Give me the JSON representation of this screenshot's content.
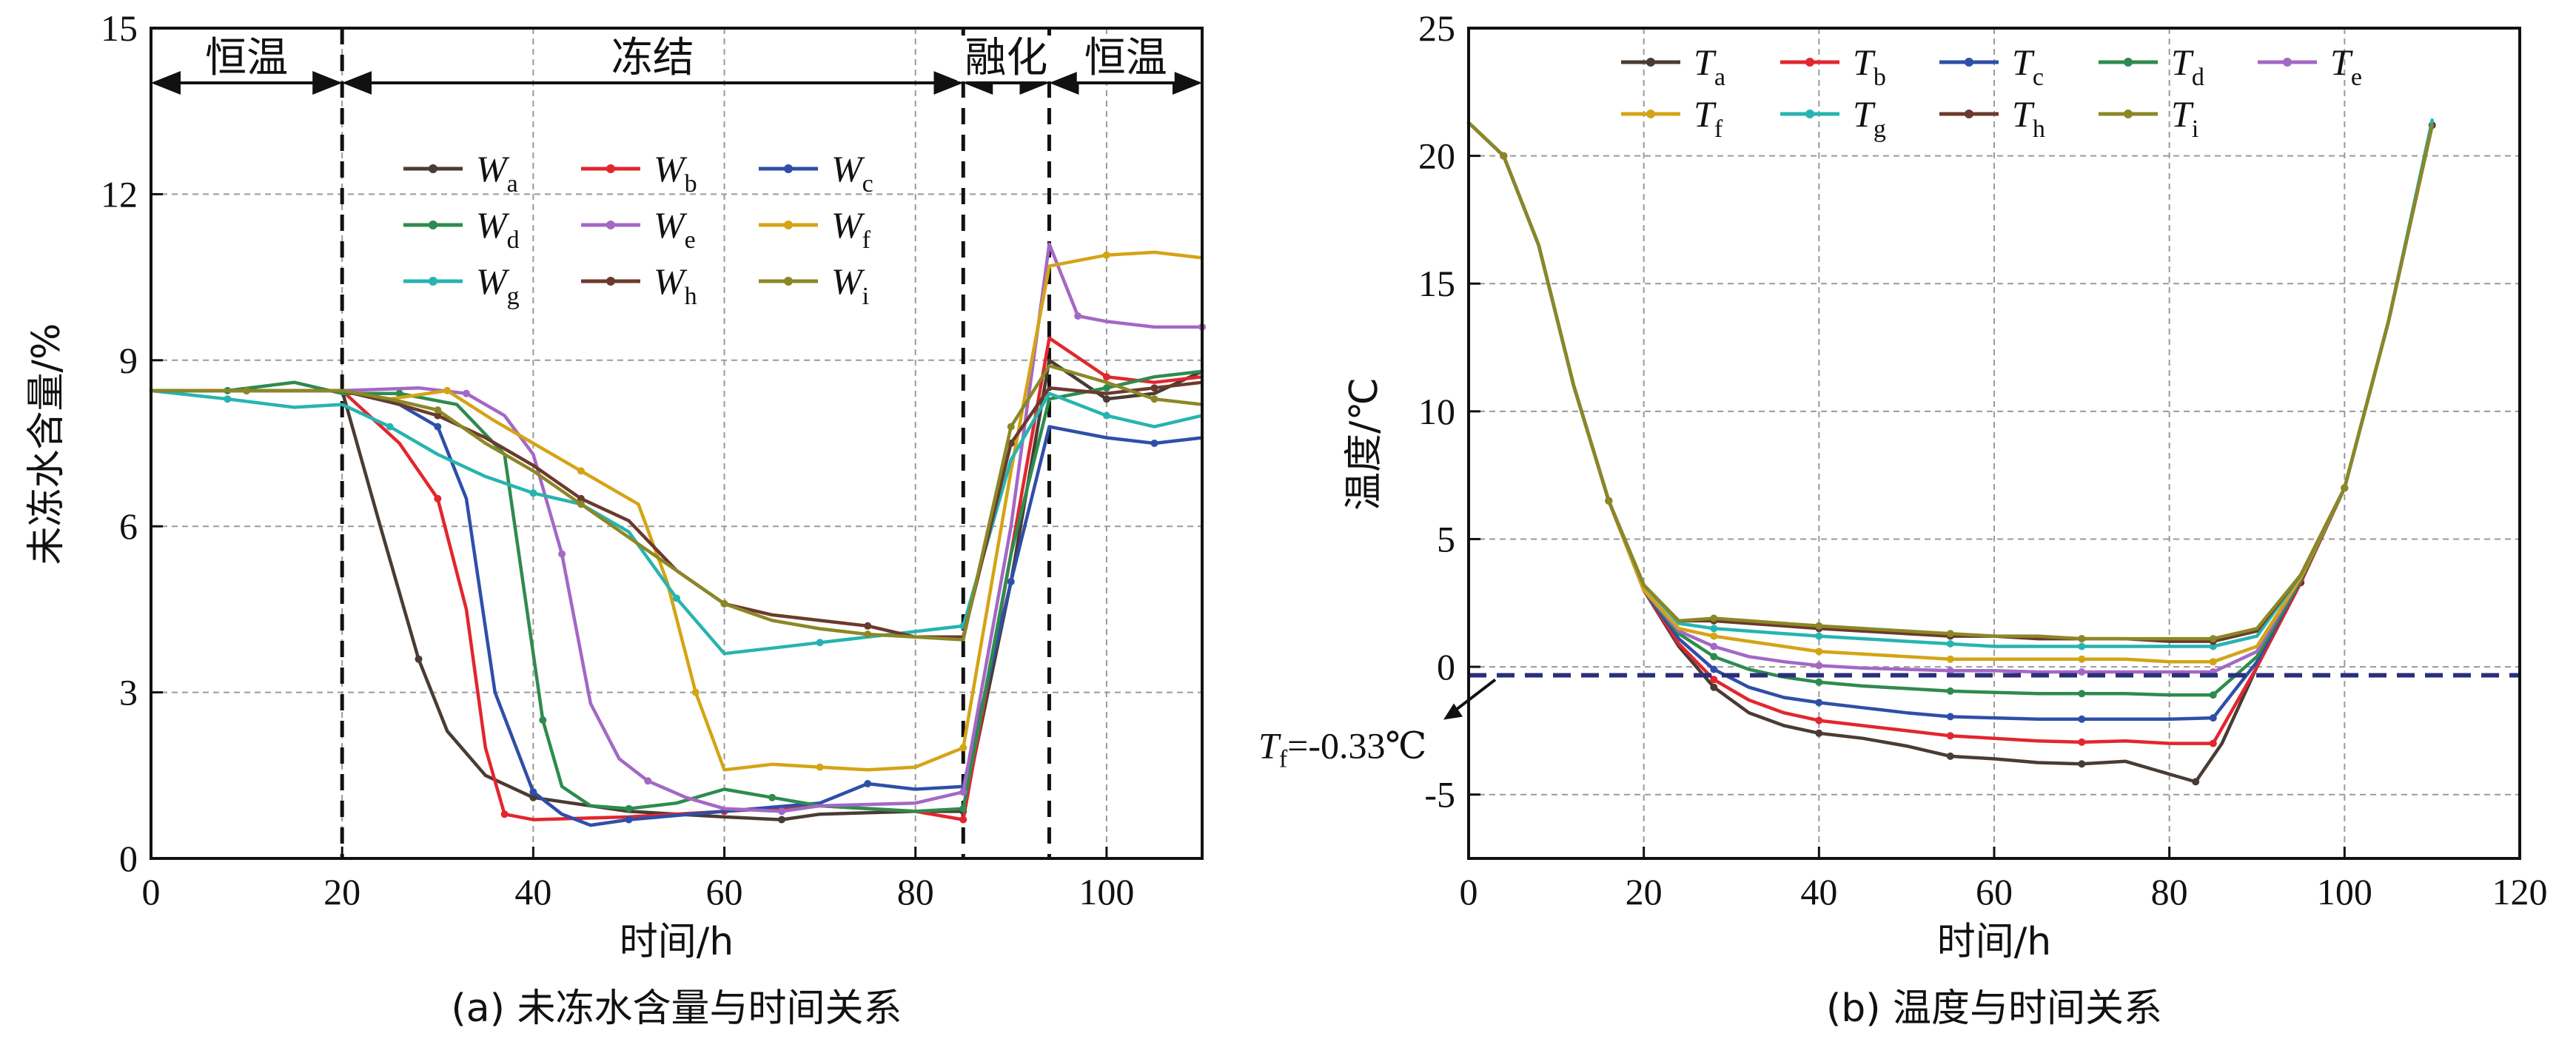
{
  "charts": [
    {
      "id": "a",
      "caption": "(a) 未冻水含量与时间关系",
      "xlabel": "时间/h",
      "ylabel": "未冻水含量/%",
      "xlim": [
        0,
        110
      ],
      "ylim": [
        0,
        15
      ],
      "xticks": [
        "0",
        "20",
        "40",
        "60",
        "80",
        "100"
      ],
      "yticks": [
        "0",
        "3",
        "6",
        "9",
        "12",
        "15"
      ],
      "phases": [
        {
          "label": "恒温",
          "from": 0,
          "to": 20
        },
        {
          "label": "冻结",
          "from": 20,
          "to": 85
        },
        {
          "label": "融化",
          "from": 85,
          "to": 94
        },
        {
          "label": "恒温",
          "from": 94,
          "to": 110
        }
      ],
      "dashed_lines_x": [
        20,
        85,
        94
      ]
    },
    {
      "id": "b",
      "caption": "(b) 温度与时间关系",
      "xlabel": "时间/h",
      "ylabel": "温度/℃",
      "xlim": [
        0,
        120
      ],
      "ylim": [
        -7.5,
        25
      ],
      "xticks": [
        "0",
        "20",
        "40",
        "60",
        "80",
        "100",
        "120"
      ],
      "yticks": [
        "-5",
        "0",
        "5",
        "10",
        "15",
        "20",
        "25"
      ],
      "freezing_line": {
        "y": -0.33,
        "label_main": "T",
        "label_sub": "f",
        "label_value": "=-0.33℃"
      }
    }
  ],
  "chart_data": [
    {
      "type": "line",
      "xlabel": "时间/h",
      "ylabel": "未冻水含量/%",
      "xlim": [
        0,
        110
      ],
      "ylim": [
        0,
        15
      ],
      "grid": true,
      "legend_position": "upper-middle",
      "series": [
        {
          "name": "Wa",
          "main": "W",
          "sub": "a",
          "color": "#4a3b33",
          "x": [
            0,
            10,
            20,
            24,
            28,
            31,
            35,
            40,
            50,
            60,
            66,
            70,
            80,
            85,
            90,
            94,
            100,
            105,
            110
          ],
          "y": [
            8.45,
            8.45,
            8.45,
            6.0,
            3.6,
            2.3,
            1.5,
            1.1,
            0.85,
            0.75,
            0.7,
            0.8,
            0.85,
            0.85,
            5.0,
            9.0,
            8.3,
            8.4,
            8.8
          ]
        },
        {
          "name": "Wb",
          "main": "W",
          "sub": "b",
          "color": "#e2262e",
          "x": [
            0,
            10,
            20,
            26,
            30,
            33,
            35,
            37,
            40,
            50,
            60,
            70,
            80,
            85,
            90,
            94,
            100,
            105,
            110
          ],
          "y": [
            8.45,
            8.45,
            8.45,
            7.5,
            6.5,
            4.5,
            2.0,
            0.8,
            0.7,
            0.75,
            0.85,
            0.95,
            0.85,
            0.7,
            5.5,
            9.4,
            8.7,
            8.6,
            8.7
          ]
        },
        {
          "name": "Wc",
          "main": "W",
          "sub": "c",
          "color": "#2e4fa8",
          "x": [
            0,
            10,
            20,
            26,
            30,
            33,
            36,
            40,
            43,
            46,
            50,
            60,
            70,
            75,
            80,
            85,
            90,
            94,
            100,
            105,
            110
          ],
          "y": [
            8.45,
            8.45,
            8.45,
            8.2,
            7.8,
            6.5,
            3.0,
            1.2,
            0.8,
            0.6,
            0.7,
            0.85,
            1.0,
            1.35,
            1.25,
            1.3,
            5.0,
            7.8,
            7.6,
            7.5,
            7.6
          ]
        },
        {
          "name": "Wd",
          "main": "W",
          "sub": "d",
          "color": "#2e8b4e",
          "x": [
            0,
            8,
            15,
            20,
            26,
            32,
            37,
            41,
            43,
            46,
            50,
            55,
            60,
            65,
            70,
            80,
            85,
            90,
            94,
            100,
            105,
            110
          ],
          "y": [
            8.45,
            8.45,
            8.6,
            8.4,
            8.4,
            8.2,
            7.3,
            2.5,
            1.3,
            0.95,
            0.9,
            1.0,
            1.25,
            1.1,
            0.95,
            0.85,
            0.9,
            5.5,
            8.3,
            8.5,
            8.7,
            8.8
          ]
        },
        {
          "name": "We",
          "main": "W",
          "sub": "e",
          "color": "#a368c4",
          "x": [
            0,
            10,
            20,
            28,
            33,
            37,
            40,
            43,
            46,
            49,
            52,
            56,
            60,
            66,
            70,
            80,
            85,
            90,
            94,
            97,
            100,
            105,
            110
          ],
          "y": [
            8.45,
            8.45,
            8.45,
            8.5,
            8.4,
            8.0,
            7.3,
            5.5,
            2.8,
            1.8,
            1.4,
            1.1,
            0.9,
            0.85,
            0.95,
            1.0,
            1.2,
            6.0,
            11.1,
            9.8,
            9.7,
            9.6,
            9.6
          ]
        },
        {
          "name": "Wf",
          "main": "W",
          "sub": "f",
          "color": "#d4a416",
          "x": [
            0,
            10,
            20,
            25,
            31,
            36,
            40,
            45,
            51,
            54,
            57,
            60,
            65,
            70,
            75,
            80,
            85,
            90,
            94,
            100,
            105,
            110
          ],
          "y": [
            8.45,
            8.45,
            8.45,
            8.3,
            8.45,
            7.9,
            7.5,
            7.0,
            6.4,
            5.0,
            3.0,
            1.6,
            1.7,
            1.65,
            1.6,
            1.65,
            2.0,
            7.0,
            10.7,
            10.9,
            10.95,
            10.85
          ]
        },
        {
          "name": "Wg",
          "main": "W",
          "sub": "g",
          "color": "#27b4b0",
          "x": [
            0,
            8,
            15,
            20,
            25,
            30,
            35,
            40,
            45,
            50,
            55,
            60,
            65,
            70,
            75,
            80,
            85,
            90,
            94,
            100,
            105,
            110
          ],
          "y": [
            8.45,
            8.3,
            8.15,
            8.2,
            7.8,
            7.3,
            6.9,
            6.6,
            6.4,
            5.9,
            4.7,
            3.7,
            3.8,
            3.9,
            4.0,
            4.1,
            4.2,
            7.2,
            8.4,
            8.0,
            7.8,
            8.0
          ]
        },
        {
          "name": "Wh",
          "main": "W",
          "sub": "h",
          "color": "#6b3a2c",
          "x": [
            0,
            10,
            20,
            25,
            30,
            35,
            40,
            45,
            50,
            55,
            60,
            65,
            70,
            75,
            80,
            85,
            90,
            94,
            100,
            105,
            110
          ],
          "y": [
            8.45,
            8.45,
            8.45,
            8.25,
            8.0,
            7.6,
            7.1,
            6.5,
            6.1,
            5.2,
            4.6,
            4.4,
            4.3,
            4.2,
            4.0,
            4.0,
            7.5,
            8.5,
            8.4,
            8.5,
            8.6
          ]
        },
        {
          "name": "Wi",
          "main": "W",
          "sub": "i",
          "color": "#8b8727",
          "x": [
            0,
            10,
            20,
            25,
            30,
            35,
            40,
            45,
            50,
            55,
            60,
            65,
            70,
            75,
            80,
            85,
            90,
            94,
            100,
            105,
            110
          ],
          "y": [
            8.45,
            8.45,
            8.45,
            8.3,
            8.1,
            7.5,
            7.0,
            6.4,
            5.8,
            5.2,
            4.6,
            4.3,
            4.15,
            4.05,
            4.0,
            3.95,
            7.8,
            8.9,
            8.6,
            8.3,
            8.2
          ]
        }
      ]
    },
    {
      "type": "line",
      "xlabel": "时间/h",
      "ylabel": "温度/℃",
      "xlim": [
        0,
        120
      ],
      "ylim": [
        -7.5,
        25
      ],
      "grid": true,
      "legend_position": "top",
      "series": [
        {
          "name": "Ta",
          "main": "T",
          "sub": "a",
          "color": "#4a3b33",
          "x": [
            0,
            4,
            8,
            12,
            16,
            20,
            24,
            28,
            32,
            36,
            40,
            45,
            50,
            55,
            60,
            65,
            70,
            75,
            80,
            83,
            86,
            90,
            95,
            100,
            105,
            110
          ],
          "y": [
            21.3,
            20.0,
            16.5,
            11.0,
            6.5,
            3.0,
            0.8,
            -0.8,
            -1.8,
            -2.3,
            -2.6,
            -2.8,
            -3.1,
            -3.5,
            -3.6,
            -3.75,
            -3.8,
            -3.7,
            -4.2,
            -4.5,
            -3.0,
            0.0,
            3.3,
            7.0,
            13.5,
            21.2
          ]
        },
        {
          "name": "Tb",
          "main": "T",
          "sub": "b",
          "color": "#e2262e",
          "x": [
            0,
            4,
            8,
            12,
            16,
            20,
            24,
            28,
            32,
            36,
            40,
            45,
            50,
            55,
            60,
            65,
            70,
            75,
            80,
            85,
            90,
            95,
            100,
            105,
            110
          ],
          "y": [
            21.3,
            20.0,
            16.5,
            11.0,
            6.5,
            3.0,
            0.9,
            -0.5,
            -1.3,
            -1.8,
            -2.1,
            -2.3,
            -2.5,
            -2.7,
            -2.8,
            -2.9,
            -2.95,
            -2.9,
            -3.0,
            -3.0,
            0.0,
            3.3,
            7.0,
            13.5,
            21.2
          ]
        },
        {
          "name": "Tc",
          "main": "T",
          "sub": "c",
          "color": "#2e4fa8",
          "x": [
            0,
            4,
            8,
            12,
            16,
            20,
            24,
            28,
            32,
            36,
            40,
            45,
            50,
            55,
            60,
            65,
            70,
            75,
            80,
            85,
            90,
            95,
            100,
            105,
            110
          ],
          "y": [
            21.3,
            20.0,
            16.5,
            11.0,
            6.5,
            3.0,
            1.1,
            -0.1,
            -0.8,
            -1.2,
            -1.4,
            -1.6,
            -1.8,
            -1.95,
            -2.0,
            -2.05,
            -2.05,
            -2.05,
            -2.05,
            -2.0,
            0.2,
            3.4,
            7.0,
            13.5,
            21.3
          ]
        },
        {
          "name": "Td",
          "main": "T",
          "sub": "d",
          "color": "#2e8b4e",
          "x": [
            0,
            4,
            8,
            12,
            16,
            20,
            24,
            28,
            32,
            36,
            40,
            45,
            50,
            55,
            60,
            65,
            70,
            75,
            80,
            85,
            90,
            95,
            100,
            105,
            110
          ],
          "y": [
            21.3,
            20.0,
            16.5,
            11.0,
            6.5,
            3.0,
            1.3,
            0.4,
            -0.1,
            -0.4,
            -0.6,
            -0.75,
            -0.85,
            -0.95,
            -1.0,
            -1.05,
            -1.05,
            -1.05,
            -1.1,
            -1.1,
            0.4,
            3.4,
            7.0,
            13.5,
            21.2
          ]
        },
        {
          "name": "Te",
          "main": "T",
          "sub": "e",
          "color": "#a368c4",
          "x": [
            0,
            4,
            8,
            12,
            16,
            20,
            24,
            28,
            32,
            36,
            40,
            45,
            50,
            55,
            60,
            65,
            70,
            75,
            80,
            85,
            90,
            95,
            100,
            105,
            110
          ],
          "y": [
            21.3,
            20.0,
            16.5,
            11.0,
            6.5,
            3.0,
            1.4,
            0.8,
            0.4,
            0.2,
            0.05,
            -0.05,
            -0.1,
            -0.15,
            -0.15,
            -0.2,
            -0.2,
            -0.2,
            -0.2,
            -0.2,
            0.6,
            3.5,
            7.0,
            13.5,
            21.2
          ]
        },
        {
          "name": "Tf",
          "main": "T",
          "sub": "f",
          "color": "#d4a416",
          "x": [
            0,
            4,
            8,
            12,
            16,
            20,
            24,
            28,
            32,
            36,
            40,
            45,
            50,
            55,
            60,
            65,
            70,
            75,
            80,
            85,
            90,
            95,
            100,
            105,
            110
          ],
          "y": [
            21.3,
            20.0,
            16.5,
            11.0,
            6.5,
            3.0,
            1.5,
            1.2,
            1.0,
            0.8,
            0.6,
            0.5,
            0.4,
            0.3,
            0.3,
            0.3,
            0.3,
            0.3,
            0.2,
            0.2,
            0.8,
            3.5,
            7.0,
            13.5,
            21.2
          ]
        },
        {
          "name": "Tg",
          "main": "T",
          "sub": "g",
          "color": "#27b4b0",
          "x": [
            0,
            4,
            8,
            12,
            16,
            20,
            24,
            28,
            32,
            36,
            40,
            45,
            50,
            55,
            60,
            65,
            70,
            75,
            80,
            85,
            90,
            95,
            100,
            105,
            110
          ],
          "y": [
            21.3,
            20.0,
            16.5,
            11.0,
            6.5,
            3.2,
            1.7,
            1.5,
            1.4,
            1.3,
            1.2,
            1.1,
            1.0,
            0.9,
            0.8,
            0.8,
            0.8,
            0.8,
            0.8,
            0.8,
            1.2,
            3.6,
            7.0,
            13.5,
            21.4
          ]
        },
        {
          "name": "Th",
          "main": "T",
          "sub": "h",
          "color": "#6b3a2c",
          "x": [
            0,
            4,
            8,
            12,
            16,
            20,
            24,
            28,
            32,
            36,
            40,
            45,
            50,
            55,
            60,
            65,
            70,
            75,
            80,
            85,
            90,
            95,
            100,
            105,
            110
          ],
          "y": [
            21.3,
            20.0,
            16.5,
            11.0,
            6.5,
            3.2,
            1.8,
            1.8,
            1.7,
            1.6,
            1.5,
            1.4,
            1.3,
            1.2,
            1.2,
            1.1,
            1.1,
            1.1,
            1.0,
            1.0,
            1.4,
            3.6,
            7.0,
            13.5,
            21.2
          ]
        },
        {
          "name": "Ti",
          "main": "T",
          "sub": "i",
          "color": "#8b8727",
          "x": [
            0,
            4,
            8,
            12,
            16,
            20,
            24,
            28,
            32,
            36,
            40,
            45,
            50,
            55,
            60,
            65,
            70,
            75,
            80,
            85,
            90,
            95,
            100,
            105,
            110
          ],
          "y": [
            21.3,
            20.0,
            16.5,
            11.0,
            6.5,
            3.2,
            1.8,
            1.9,
            1.8,
            1.7,
            1.6,
            1.5,
            1.4,
            1.3,
            1.2,
            1.2,
            1.1,
            1.1,
            1.1,
            1.1,
            1.5,
            3.6,
            7.0,
            13.5,
            21.2
          ]
        }
      ]
    }
  ]
}
